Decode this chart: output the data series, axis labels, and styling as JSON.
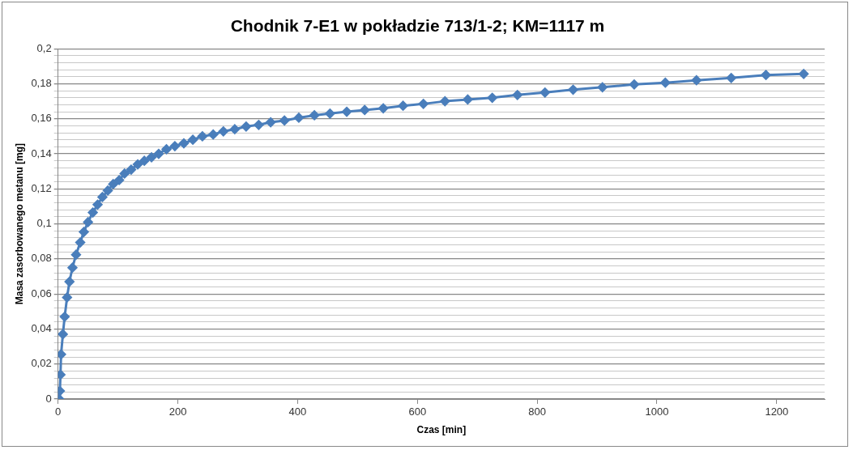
{
  "chart_data": {
    "type": "line",
    "title": "Chodnik 7-E1 w pokładzie 713/1-2; KM=1117 m",
    "xlabel": "Czas [min]",
    "ylabel": "Masa zasorbowanego metanu [mg]",
    "xlim": [
      0,
      1280
    ],
    "xticks": [
      0,
      200,
      400,
      600,
      800,
      1000,
      1200
    ],
    "ylim": [
      0,
      0.2
    ],
    "yticks": [
      0,
      {
        "value": 0.004,
        "label": null
      },
      {
        "value": 0.008,
        "label": null
      },
      {
        "value": 0.012,
        "label": null
      },
      {
        "value": 0.016,
        "label": null
      },
      {
        "value": 0.02,
        "label": "0,02"
      },
      {
        "value": 0.024,
        "label": null
      },
      {
        "value": 0.028,
        "label": null
      },
      {
        "value": 0.032,
        "label": null
      },
      {
        "value": 0.036,
        "label": null
      },
      {
        "value": 0.04,
        "label": "0,04"
      },
      {
        "value": 0.044,
        "label": null
      },
      {
        "value": 0.048,
        "label": null
      },
      {
        "value": 0.052,
        "label": null
      },
      {
        "value": 0.056,
        "label": null
      },
      {
        "value": 0.06,
        "label": "0,06"
      },
      {
        "value": 0.064,
        "label": null
      },
      {
        "value": 0.068,
        "label": null
      },
      {
        "value": 0.072,
        "label": null
      },
      {
        "value": 0.076,
        "label": null
      },
      {
        "value": 0.08,
        "label": "0,08"
      },
      {
        "value": 0.084,
        "label": null
      },
      {
        "value": 0.088,
        "label": null
      },
      {
        "value": 0.092,
        "label": null
      },
      {
        "value": 0.096,
        "label": null
      },
      {
        "value": 0.1,
        "label": "0,1"
      },
      {
        "value": 0.104,
        "label": null
      },
      {
        "value": 0.108,
        "label": null
      },
      {
        "value": 0.112,
        "label": null
      },
      {
        "value": 0.116,
        "label": null
      },
      {
        "value": 0.12,
        "label": "0,12"
      },
      {
        "value": 0.124,
        "label": null
      },
      {
        "value": 0.128,
        "label": null
      },
      {
        "value": 0.132,
        "label": null
      },
      {
        "value": 0.136,
        "label": null
      },
      {
        "value": 0.14,
        "label": "0,14"
      },
      {
        "value": 0.144,
        "label": null
      },
      {
        "value": 0.148,
        "label": null
      },
      {
        "value": 0.152,
        "label": null
      },
      {
        "value": 0.156,
        "label": null
      },
      {
        "value": 0.16,
        "label": "0,16"
      },
      {
        "value": 0.164,
        "label": null
      },
      {
        "value": 0.168,
        "label": null
      },
      {
        "value": 0.172,
        "label": null
      },
      {
        "value": 0.176,
        "label": null
      },
      {
        "value": 0.18,
        "label": "0,18"
      },
      {
        "value": 0.184,
        "label": null
      },
      {
        "value": 0.188,
        "label": null
      },
      {
        "value": 0.192,
        "label": null
      },
      {
        "value": 0.196,
        "label": null
      },
      {
        "value": 0.2,
        "label": "0,2"
      }
    ],
    "grid": "y",
    "legend": false,
    "marker": "diamond",
    "line_style": "solid",
    "x": [
      2,
      3,
      4,
      5,
      8,
      11,
      15,
      19,
      24,
      30,
      37,
      43,
      50,
      58,
      66,
      74,
      83,
      92,
      102,
      111,
      122,
      133,
      144,
      156,
      168,
      181,
      195,
      210,
      225,
      241,
      259,
      276,
      295,
      314,
      335,
      355,
      378,
      402,
      428,
      454,
      482,
      512,
      543,
      576,
      610,
      646,
      684,
      725,
      767,
      813,
      860,
      909,
      962,
      1014,
      1066,
      1124,
      1182,
      1245
    ],
    "series": [
      {
        "color": "#4a7ebb",
        "values": [
          0,
          0.0046,
          0.0139,
          0.0255,
          0.037,
          0.047,
          0.058,
          0.067,
          0.075,
          0.0824,
          0.0894,
          0.0954,
          0.101,
          0.1065,
          0.111,
          0.1153,
          0.119,
          0.1227,
          0.125,
          0.1287,
          0.131,
          0.134,
          0.136,
          0.138,
          0.14,
          0.1426,
          0.1444,
          0.146,
          0.148,
          0.15,
          0.151,
          0.1528,
          0.154,
          0.1556,
          0.1565,
          0.158,
          0.159,
          0.1606,
          0.162,
          0.163,
          0.164,
          0.165,
          0.166,
          0.1674,
          0.1685,
          0.17,
          0.171,
          0.172,
          0.1736,
          0.175,
          0.1766,
          0.178,
          0.1796,
          0.1806,
          0.182,
          0.1833,
          0.185,
          0.1856
        ]
      }
    ]
  }
}
